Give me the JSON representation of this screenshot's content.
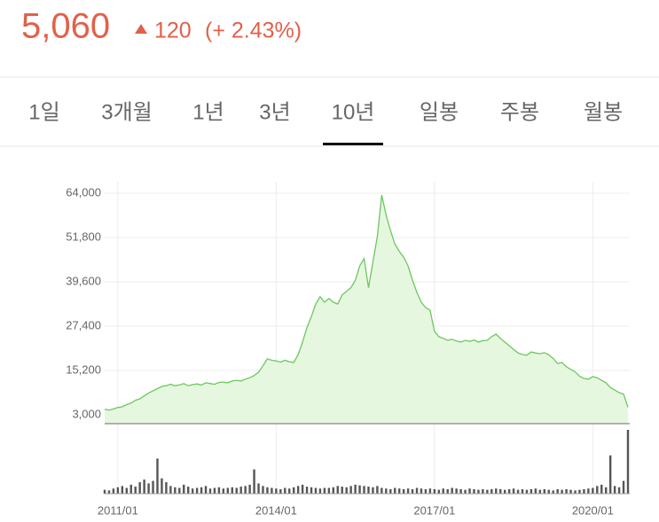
{
  "header": {
    "price": "5,060",
    "change": "120",
    "change_pct": "(+ 2.43%)"
  },
  "tabs": [
    "1일",
    "3개월",
    "1년",
    "3년",
    "10년",
    "일봉",
    "주봉",
    "월봉"
  ],
  "active_tab": 4,
  "chart_data": {
    "type": "line",
    "x": [
      "2010/10",
      "2010/11",
      "2010/12",
      "2011/01",
      "2011/02",
      "2011/03",
      "2011/04",
      "2011/05",
      "2011/06",
      "2011/07",
      "2011/08",
      "2011/09",
      "2011/10",
      "2011/11",
      "2011/12",
      "2012/01",
      "2012/02",
      "2012/03",
      "2012/04",
      "2012/05",
      "2012/06",
      "2012/07",
      "2012/08",
      "2012/09",
      "2012/10",
      "2012/11",
      "2012/12",
      "2013/01",
      "2013/02",
      "2013/03",
      "2013/04",
      "2013/05",
      "2013/06",
      "2013/07",
      "2013/08",
      "2013/09",
      "2013/10",
      "2013/11",
      "2013/12",
      "2014/01",
      "2014/02",
      "2014/03",
      "2014/04",
      "2014/05",
      "2014/06",
      "2014/07",
      "2014/08",
      "2014/09",
      "2014/10",
      "2014/11",
      "2014/12",
      "2015/01",
      "2015/02",
      "2015/03",
      "2015/04",
      "2015/05",
      "2015/06",
      "2015/07",
      "2015/08",
      "2015/09",
      "2015/10",
      "2015/11",
      "2015/12",
      "2016/01",
      "2016/02",
      "2016/03",
      "2016/04",
      "2016/05",
      "2016/06",
      "2016/07",
      "2016/08",
      "2016/09",
      "2016/10",
      "2016/11",
      "2016/12",
      "2017/01",
      "2017/02",
      "2017/03",
      "2017/04",
      "2017/05",
      "2017/06",
      "2017/07",
      "2017/08",
      "2017/09",
      "2017/10",
      "2017/11",
      "2017/12",
      "2018/01",
      "2018/02",
      "2018/03",
      "2018/04",
      "2018/05",
      "2018/06",
      "2018/07",
      "2018/08",
      "2018/09",
      "2018/10",
      "2018/11",
      "2018/12",
      "2019/01",
      "2019/02",
      "2019/03",
      "2019/04",
      "2019/05",
      "2019/06",
      "2019/07",
      "2019/08",
      "2019/09",
      "2019/10",
      "2019/11",
      "2019/12",
      "2020/01",
      "2020/02",
      "2020/03",
      "2020/04",
      "2020/05",
      "2020/06",
      "2020/07",
      "2020/08",
      "2020/09"
    ],
    "series": [
      {
        "color": "#6cc85e",
        "values": [
          4500,
          4300,
          4600,
          5000,
          5200,
          5800,
          6200,
          7000,
          7400,
          8200,
          9000,
          9600,
          10200,
          10800,
          11000,
          11400,
          11000,
          11200,
          11600,
          11000,
          11300,
          11500,
          11200,
          11800,
          11600,
          11400,
          11900,
          12000,
          11800,
          12300,
          12500,
          12300,
          12800,
          13200,
          13800,
          14700,
          16500,
          18400,
          18000,
          17800,
          17500,
          18000,
          17600,
          17400,
          19600,
          23000,
          27000,
          30000,
          33500,
          35500,
          34000,
          35000,
          34000,
          33500,
          36000,
          37000,
          38000,
          40000,
          44000,
          46000,
          38000,
          45000,
          52000,
          63500,
          58000,
          53700,
          50000,
          48000,
          46400,
          44000,
          40000,
          36700,
          34000,
          32500,
          31800,
          26000,
          24500,
          24000,
          23500,
          23800,
          23300,
          23000,
          23500,
          23200,
          23600,
          23000,
          23400,
          23500,
          24500,
          25200,
          24000,
          23000,
          22000,
          21000,
          20000,
          19600,
          19400,
          20300,
          20000,
          19800,
          20100,
          19500,
          18500,
          17100,
          17400,
          16200,
          15500,
          14800,
          13600,
          13000,
          12800,
          13500,
          13200,
          12500,
          11800,
          10500,
          9800,
          9100,
          8700,
          5060
        ]
      },
      {
        "color": "#555555",
        "axis": "y2",
        "values": [
          6,
          5,
          8,
          10,
          12,
          9,
          14,
          11,
          18,
          22,
          16,
          20,
          55,
          24,
          18,
          12,
          10,
          9,
          14,
          11,
          8,
          9,
          10,
          12,
          8,
          9,
          10,
          8,
          9,
          10,
          9,
          11,
          12,
          14,
          38,
          16,
          12,
          10,
          9,
          8,
          7,
          9,
          8,
          10,
          12,
          14,
          11,
          10,
          9,
          8,
          9,
          9,
          10,
          12,
          11,
          10,
          12,
          14,
          13,
          12,
          11,
          10,
          12,
          9,
          8,
          7,
          9,
          8,
          7,
          8,
          7,
          9,
          8,
          7,
          8,
          7,
          6,
          8,
          7,
          9,
          8,
          7,
          6,
          8,
          7,
          6,
          7,
          6,
          7,
          8,
          7,
          6,
          7,
          8,
          6,
          7,
          6,
          7,
          8,
          6,
          7,
          6,
          5,
          7,
          6,
          7,
          6,
          5,
          6,
          7,
          8,
          9,
          12,
          14,
          10,
          60,
          12,
          10,
          20,
          100
        ]
      }
    ],
    "ylim": [
      560,
      64000
    ],
    "yticks": [
      {
        "value": 3000,
        "label": "3,000"
      },
      {
        "value": 15200,
        "label": "15,200"
      },
      {
        "value": 27400,
        "label": "27,400"
      },
      {
        "value": 39600,
        "label": "39,600"
      },
      {
        "value": 51800,
        "label": "51,800"
      },
      {
        "value": 64000,
        "label": "64,000"
      }
    ],
    "y2lim": [
      0,
      100
    ],
    "xticks": [
      "2011/01",
      "2014/01",
      "2017/01",
      "2020/01"
    ],
    "grid": true
  }
}
